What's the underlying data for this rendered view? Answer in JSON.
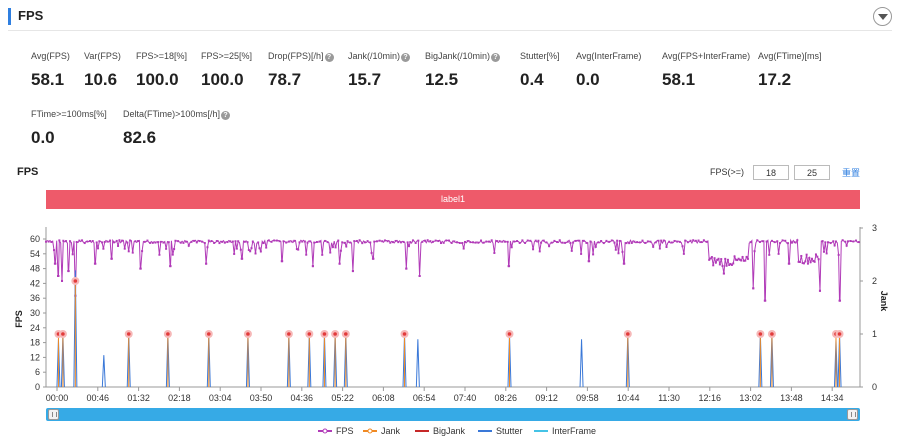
{
  "section": {
    "title": "FPS"
  },
  "metrics_row1": [
    {
      "label": "Avg(FPS)",
      "value": "58.1",
      "help": false
    },
    {
      "label": "Var(FPS)",
      "value": "10.6",
      "help": false
    },
    {
      "label": "FPS>=18[%]",
      "value": "100.0",
      "help": false
    },
    {
      "label": "FPS>=25[%]",
      "value": "100.0",
      "help": false
    },
    {
      "label": "Drop(FPS)[/h]",
      "value": "78.7",
      "help": true
    },
    {
      "label": "Jank(/10min)",
      "value": "15.7",
      "help": true
    },
    {
      "label": "BigJank(/10min)",
      "value": "12.5",
      "help": true
    },
    {
      "label": "Stutter[%]",
      "value": "0.4",
      "help": false
    },
    {
      "label": "Avg(InterFrame)",
      "value": "0.0",
      "help": false
    },
    {
      "label": "Avg(FPS+InterFrame)",
      "value": "58.1",
      "help": false
    },
    {
      "label": "Avg(FTime)[ms]",
      "value": "17.2",
      "help": false
    }
  ],
  "metrics_row2": [
    {
      "label": "FTime>=100ms[%]",
      "value": "0.0",
      "help": false
    },
    {
      "label": "Delta(FTime)>100ms[/h]",
      "value": "82.6",
      "help": true
    }
  ],
  "chart_header": {
    "title": "FPS",
    "threshold_label": "FPS(>=)",
    "threshold_1": "18",
    "threshold_2": "25",
    "reset_label": "重置"
  },
  "label_bar": {
    "text": "label1"
  },
  "legend": {
    "items": [
      {
        "name": "FPS",
        "color": "#b13bb8"
      },
      {
        "name": "Jank",
        "color": "#f08a24"
      },
      {
        "name": "BigJank",
        "color": "#c62828"
      },
      {
        "name": "Stutter",
        "color": "#3a78d8"
      },
      {
        "name": "InterFrame",
        "color": "#45c3e6"
      }
    ]
  },
  "chart_data": {
    "type": "line",
    "ylabel": "FPS",
    "y2label": "Jank",
    "ylim": [
      0,
      60
    ],
    "y2lim": [
      0,
      3
    ],
    "yticks": [
      "0",
      "6",
      "12",
      "18",
      "24",
      "30",
      "36",
      "42",
      "48",
      "54",
      "60"
    ],
    "y2ticks": [
      "0",
      "1",
      "2",
      "3"
    ],
    "xticks": [
      "00:00",
      "00:46",
      "01:32",
      "02:18",
      "03:04",
      "03:50",
      "04:36",
      "05:22",
      "06:08",
      "06:54",
      "07:40",
      "08:26",
      "09:12",
      "09:58",
      "10:44",
      "11:30",
      "12:16",
      "13:02",
      "13:48",
      "14:34"
    ],
    "duration_seconds": 915,
    "fps_series": {
      "name": "FPS",
      "baseline": 59.5,
      "dips": [
        {
          "t": 10,
          "fps": 50
        },
        {
          "t": 14,
          "fps": 45
        },
        {
          "t": 18,
          "fps": 43
        },
        {
          "t": 25,
          "fps": 47
        },
        {
          "t": 33,
          "fps": 37
        },
        {
          "t": 55,
          "fps": 50
        },
        {
          "t": 74,
          "fps": 52
        },
        {
          "t": 106,
          "fps": 48
        },
        {
          "t": 140,
          "fps": 49
        },
        {
          "t": 180,
          "fps": 50
        },
        {
          "t": 220,
          "fps": 52
        },
        {
          "t": 265,
          "fps": 51
        },
        {
          "t": 300,
          "fps": 49
        },
        {
          "t": 330,
          "fps": 50
        },
        {
          "t": 345,
          "fps": 47
        },
        {
          "t": 368,
          "fps": 52
        },
        {
          "t": 405,
          "fps": 48
        },
        {
          "t": 420,
          "fps": 45
        },
        {
          "t": 520,
          "fps": 49
        },
        {
          "t": 610,
          "fps": 51
        },
        {
          "t": 650,
          "fps": 50
        },
        {
          "t": 762,
          "fps": 46
        },
        {
          "t": 795,
          "fps": 40
        },
        {
          "t": 808,
          "fps": 35
        },
        {
          "t": 835,
          "fps": 50
        },
        {
          "t": 870,
          "fps": 39
        },
        {
          "t": 892,
          "fps": 35
        }
      ],
      "low_segments": [
        {
          "start": 745,
          "end": 790,
          "fps": 51
        },
        {
          "start": 845,
          "end": 870,
          "fps": 52
        }
      ]
    },
    "stutter_spikes": [
      {
        "t": 14,
        "value": 0.9
      },
      {
        "t": 19,
        "value": 1.0
      },
      {
        "t": 33,
        "value": 2.2
      },
      {
        "t": 65,
        "value": 0.6
      },
      {
        "t": 93,
        "value": 1.0
      },
      {
        "t": 137,
        "value": 1.0
      },
      {
        "t": 183,
        "value": 1.0
      },
      {
        "t": 227,
        "value": 1.0
      },
      {
        "t": 273,
        "value": 1.0
      },
      {
        "t": 296,
        "value": 1.0
      },
      {
        "t": 313,
        "value": 1.0
      },
      {
        "t": 325,
        "value": 1.0
      },
      {
        "t": 337,
        "value": 1.0
      },
      {
        "t": 403,
        "value": 1.0
      },
      {
        "t": 418,
        "value": 0.9
      },
      {
        "t": 521,
        "value": 1.0
      },
      {
        "t": 602,
        "value": 0.9
      },
      {
        "t": 654,
        "value": 1.0
      },
      {
        "t": 803,
        "value": 1.0
      },
      {
        "t": 816,
        "value": 1.0
      },
      {
        "t": 888,
        "value": 0.9
      },
      {
        "t": 892,
        "value": 1.0
      }
    ],
    "jank_markers": [
      {
        "t": 14,
        "value": 1.0
      },
      {
        "t": 19,
        "value": 1.0
      },
      {
        "t": 33,
        "value": 2.0
      },
      {
        "t": 93,
        "value": 1.0
      },
      {
        "t": 137,
        "value": 1.0
      },
      {
        "t": 183,
        "value": 1.0
      },
      {
        "t": 227,
        "value": 1.0
      },
      {
        "t": 273,
        "value": 1.0
      },
      {
        "t": 296,
        "value": 1.0
      },
      {
        "t": 313,
        "value": 1.0
      },
      {
        "t": 325,
        "value": 1.0
      },
      {
        "t": 337,
        "value": 1.0
      },
      {
        "t": 403,
        "value": 1.0
      },
      {
        "t": 521,
        "value": 1.0
      },
      {
        "t": 654,
        "value": 1.0
      },
      {
        "t": 803,
        "value": 1.0
      },
      {
        "t": 816,
        "value": 1.0
      },
      {
        "t": 888,
        "value": 1.0
      },
      {
        "t": 892,
        "value": 1.0
      }
    ]
  }
}
